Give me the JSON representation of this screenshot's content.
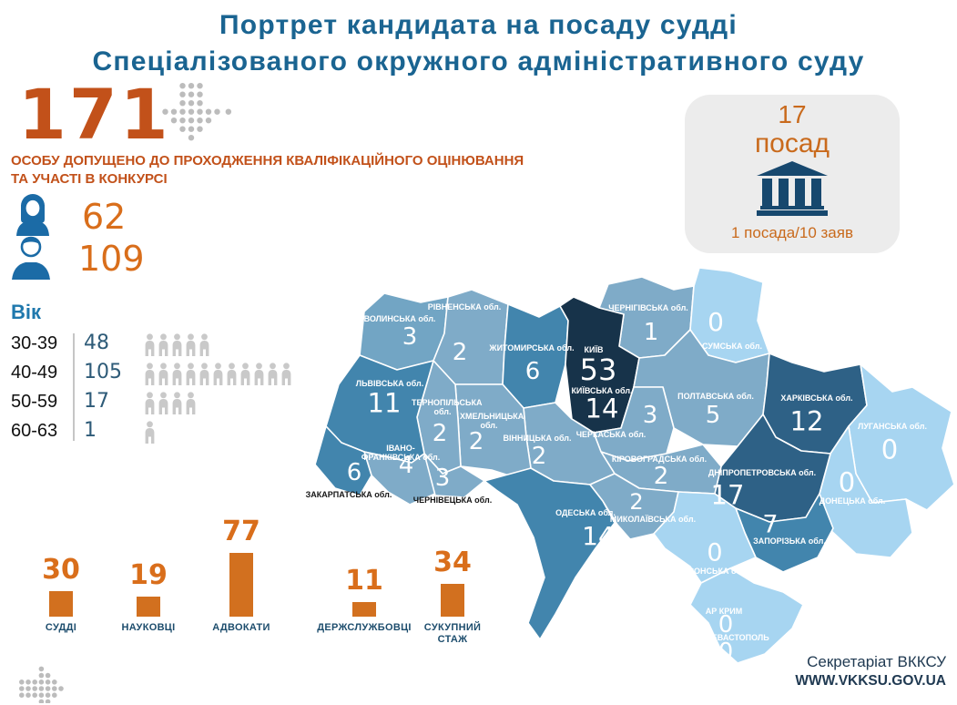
{
  "title": {
    "line1": "Портрет кандидата на посаду судді",
    "line2": "Спеціалізованого окружного адміністративного суду"
  },
  "admitted": {
    "number": "171",
    "caption_line1": "ОСОБУ ДОПУЩЕНО ДО ПРОХОДЖЕННЯ КВАЛІФІКАЦІЙНОГО ОЦІНЮВАННЯ",
    "caption_line2": "ТА УЧАСТІ В КОНКУРСІ"
  },
  "gender": {
    "women_count": "62",
    "men_count": "109"
  },
  "positions_card": {
    "count": "17",
    "unit": "посад",
    "ratio_note": "1 посада/10 заяв"
  },
  "footer": {
    "org": "Секретаріат ВККСУ",
    "site": "WWW.VKKSU.GOV.UA"
  },
  "colors": {
    "title_blue": "#1a6491",
    "accent_orange_dark": "#c2511a",
    "accent_orange": "#d2701f",
    "icon_blue": "#1b6ba6",
    "building_navy": "#17486e",
    "map_zero": "#a7d5f1",
    "map_low": "#7fabc8",
    "map_mid": "#4285ad",
    "map_high": "#2e6186",
    "map_kyiv": "#17334a"
  },
  "chart_data": [
    {
      "type": "heatmap",
      "subtype": "choropleth-map-ukraine",
      "regions": [
        {
          "name": "ВОЛИНСЬКА обл.",
          "value": 3
        },
        {
          "name": "РІВНЕНСЬКА обл.",
          "value": 2
        },
        {
          "name": "ЖИТОМИРСЬКА обл.",
          "value": 6
        },
        {
          "name": "ЧЕРНІГІВСЬКА обл.",
          "value": 1
        },
        {
          "name": "СУМСЬКА обл.",
          "value": 0
        },
        {
          "name": "КИЇВ",
          "value": 53
        },
        {
          "name": "КИЇВСЬКА обл.",
          "value": 14
        },
        {
          "name": "ПОЛТАВСЬКА обл.",
          "value": 5
        },
        {
          "name": "ХАРКІВСЬКА обл.",
          "value": 12
        },
        {
          "name": "ЛУГАНСЬКА обл.",
          "value": 0
        },
        {
          "name": "ДОНЕЦЬКА обл.",
          "value": 0
        },
        {
          "name": "ДНІПРОПЕТРОВСЬКА обл.",
          "value": 17
        },
        {
          "name": "ЗАПОРІЗЬКА обл.",
          "value": 7
        },
        {
          "name": "ЧЕРКАСЬКА обл.",
          "value": 3
        },
        {
          "name": "КІРОВОГРАДСЬКА обл.",
          "value": 2
        },
        {
          "name": "ВІННИЦЬКА обл.",
          "value": 2
        },
        {
          "name": "ХМЕЛЬНИЦЬКА обл.",
          "value": 2
        },
        {
          "name": "ТЕРНОПІЛЬСЬКА обл.",
          "value": 2
        },
        {
          "name": "ЛЬВІВСЬКА обл.",
          "value": 11
        },
        {
          "name": "ІВАНО-ФРАНКІВСЬКА обл.",
          "value": 4
        },
        {
          "name": "ЗАКАРПАТСЬКА обл.",
          "value": 6
        },
        {
          "name": "ЧЕРНІВЕЦЬКА обл.",
          "value": 3
        },
        {
          "name": "ОДЕСЬКА обл.",
          "value": 14
        },
        {
          "name": "МИКОЛАЇВСЬКА обл.",
          "value": 2
        },
        {
          "name": "ХЕРСОНСЬКА обл.",
          "value": 0
        },
        {
          "name": "АР КРИМ",
          "value": 0
        },
        {
          "name": "СЕВАСТОПОЛЬ",
          "value": 0
        }
      ]
    },
    {
      "type": "bar",
      "categories": [
        "СУДДІ",
        "НАУКОВЦІ",
        "АДВОКАТИ",
        "ДЕРЖСЛУЖБОВЦІ",
        "СУКУПНИЙ СТАЖ"
      ],
      "values": [
        30,
        19,
        77,
        11,
        34
      ],
      "bar_color": "#d2701f"
    },
    {
      "type": "pictogram",
      "title": "Вік",
      "categories": [
        "30-39",
        "40-49",
        "50-59",
        "60-63"
      ],
      "values": [
        48,
        105,
        17,
        1
      ]
    }
  ]
}
